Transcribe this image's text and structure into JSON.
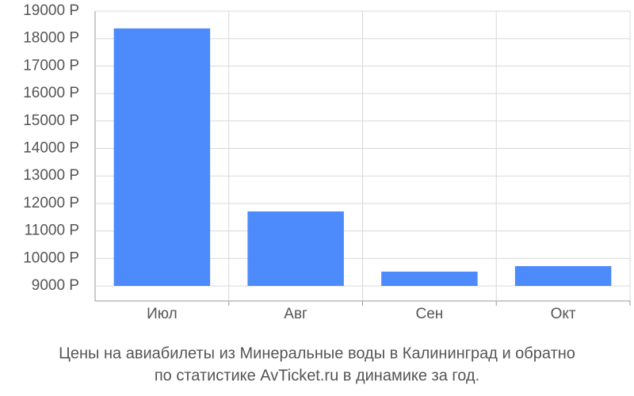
{
  "chart_data": {
    "type": "bar",
    "title": [
      "Цены на авиабилеты из Минеральные воды в Калининград и обратно",
      "по статистике AvTicket.ru в динамике за год."
    ],
    "categories": [
      "Июл",
      "Авг",
      "Сен",
      "Окт"
    ],
    "values": [
      18370,
      11710,
      9520,
      9720
    ],
    "color": "#4d8afc",
    "ylim": [
      9000,
      19000
    ],
    "yticks": [
      {
        "value": 9000,
        "label": "9000 Р"
      },
      {
        "value": 10000,
        "label": "10000 Р"
      },
      {
        "value": 11000,
        "label": "11000 Р"
      },
      {
        "value": 12000,
        "label": "12000 Р"
      },
      {
        "value": 13000,
        "label": "13000 Р"
      },
      {
        "value": 14000,
        "label": "14000 Р"
      },
      {
        "value": 15000,
        "label": "15000 Р"
      },
      {
        "value": 16000,
        "label": "16000 Р"
      },
      {
        "value": 17000,
        "label": "17000 Р"
      },
      {
        "value": 18000,
        "label": "18000 Р"
      },
      {
        "value": 19000,
        "label": "19000 Р"
      }
    ],
    "grid": true
  }
}
